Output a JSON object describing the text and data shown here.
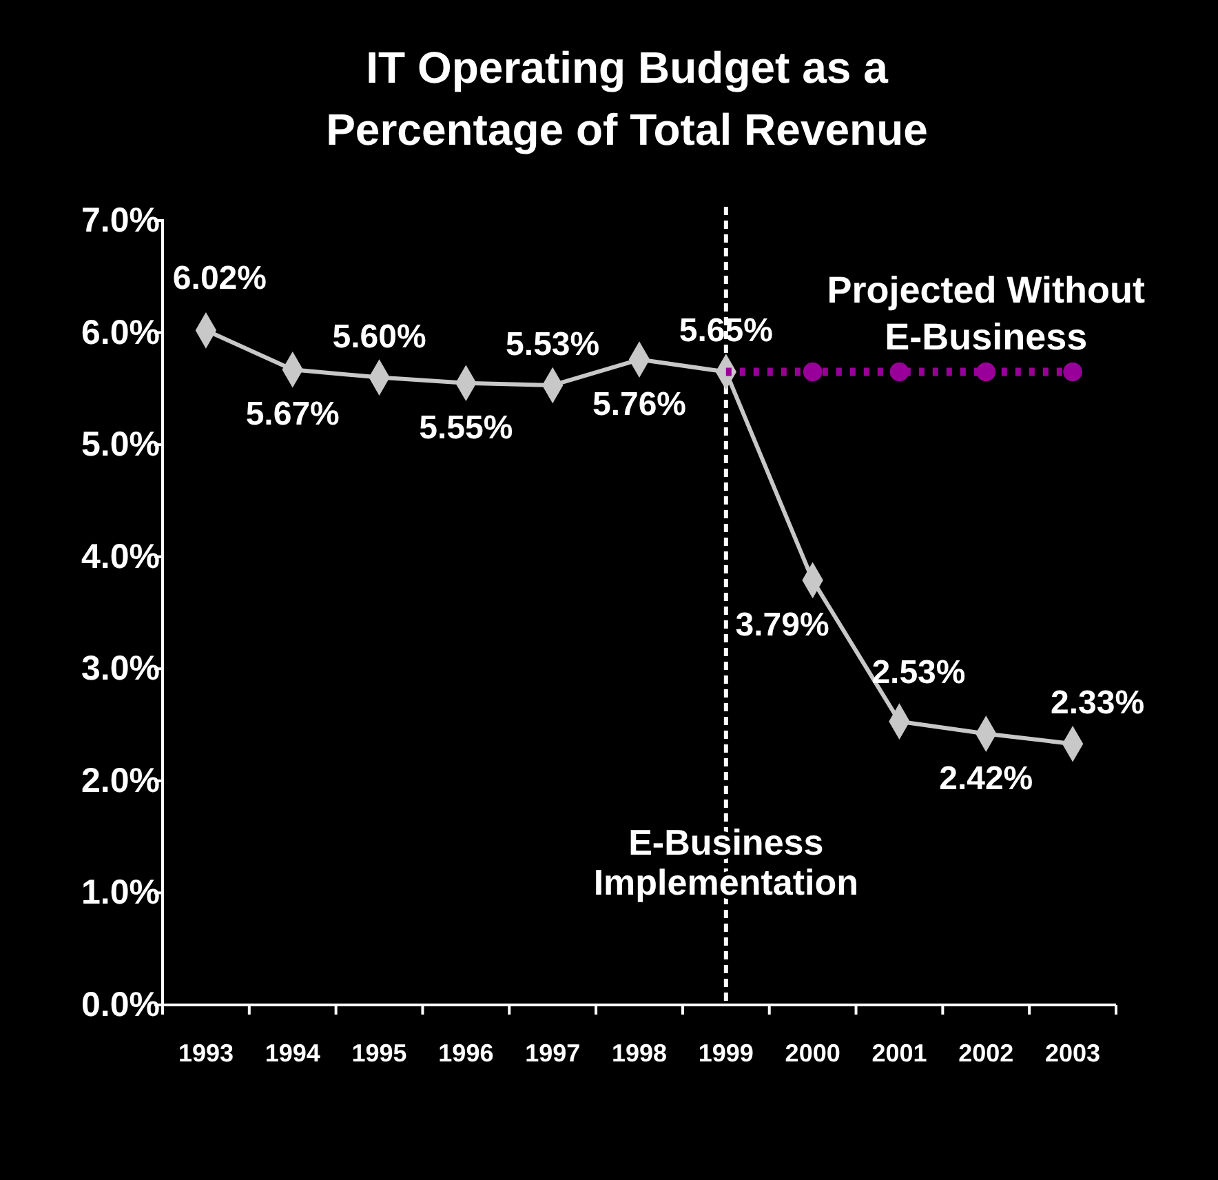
{
  "chart_data": {
    "type": "line",
    "title": "IT Operating Budget as a Percentage of Total Revenue",
    "categories": [
      "1993",
      "1994",
      "1995",
      "1996",
      "1997",
      "1998",
      "1999",
      "2000",
      "2001",
      "2002",
      "2003"
    ],
    "series": [
      {
        "color": "#c8c8c8",
        "marker": "diamond",
        "line_style": "solid",
        "values": [
          6.02,
          5.67,
          5.6,
          5.55,
          5.53,
          5.76,
          5.65,
          3.79,
          2.53,
          2.42,
          2.33
        ],
        "value_labels": [
          "6.02%",
          "5.67%",
          "5.60%",
          "5.55%",
          "5.53%",
          "5.76%",
          "5.65%",
          "3.79%",
          "2.53%",
          "2.42%",
          "2.33%"
        ]
      },
      {
        "color": "#990099",
        "marker": "circle",
        "line_style": "dotted",
        "values": [
          null,
          null,
          null,
          null,
          null,
          null,
          5.65,
          5.65,
          5.65,
          5.65,
          5.65
        ]
      }
    ],
    "ylim": [
      0,
      7
    ],
    "yticks": [
      {
        "value": 0,
        "label": "0.0%"
      },
      {
        "value": 1,
        "label": "1.0%"
      },
      {
        "value": 2,
        "label": "2.0%"
      },
      {
        "value": 3,
        "label": "3.0%"
      },
      {
        "value": 4,
        "label": "4.0%"
      },
      {
        "value": 5,
        "label": "5.0%"
      },
      {
        "value": 6,
        "label": "6.0%"
      },
      {
        "value": 7,
        "label": "7.0%"
      }
    ],
    "ref_lines": [
      {
        "axis": "x",
        "value": "1999",
        "label": "E-Business Implementation",
        "color": "#ffffff",
        "line_style": "dashed"
      }
    ],
    "annotations": [
      {
        "text": "Projected Without E-Business",
        "x": "2002",
        "y": 5.65
      }
    ],
    "grid": false
  }
}
